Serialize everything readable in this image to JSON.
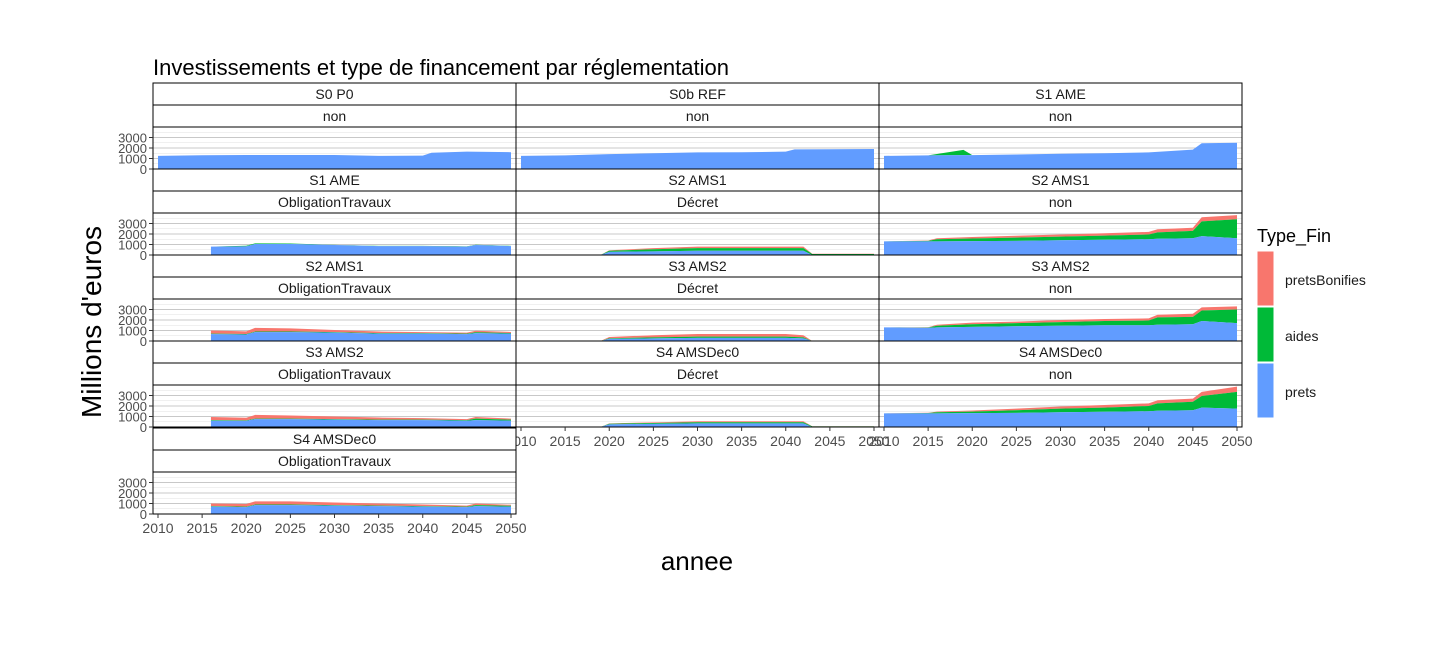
{
  "chart_data": {
    "type": "area",
    "title": "Investissements et type de financement par réglementation",
    "xlabel": "annee",
    "ylabel": "Millions d'euros",
    "x_ticks": [
      2010,
      2015,
      2020,
      2025,
      2030,
      2035,
      2040,
      2045,
      2050
    ],
    "y_ticks": [
      0,
      1000,
      2000,
      3000
    ],
    "xlim": [
      2010,
      2050
    ],
    "ylim": [
      0,
      4000
    ],
    "stacked": true,
    "grid": true,
    "legend": {
      "title": "Type_Fin",
      "position": "right",
      "entries": [
        {
          "name": "pretsBonifies",
          "color": "#F8766D"
        },
        {
          "name": "aides",
          "color": "#00BA38"
        },
        {
          "name": "prets",
          "color": "#619CFF"
        }
      ]
    },
    "panels": [
      {
        "scenario": "S0 P0",
        "regime": "non",
        "x": [
          2010,
          2015,
          2020,
          2025,
          2030,
          2035,
          2040,
          2041,
          2045,
          2050
        ],
        "prets": [
          1250,
          1310,
          1330,
          1330,
          1330,
          1250,
          1270,
          1550,
          1650,
          1600
        ],
        "aides": [
          0,
          0,
          0,
          0,
          0,
          0,
          0,
          0,
          0,
          0
        ],
        "pretsBonifies": [
          0,
          0,
          0,
          0,
          0,
          0,
          0,
          0,
          0,
          0
        ]
      },
      {
        "scenario": "S0b REF",
        "regime": "non",
        "x": [
          2010,
          2015,
          2020,
          2025,
          2030,
          2035,
          2040,
          2041,
          2045,
          2050
        ],
        "prets": [
          1250,
          1300,
          1420,
          1500,
          1580,
          1600,
          1650,
          1870,
          1880,
          1900
        ],
        "aides": [
          0,
          0,
          0,
          0,
          0,
          0,
          0,
          0,
          0,
          0
        ],
        "pretsBonifies": [
          0,
          0,
          0,
          0,
          0,
          0,
          0,
          0,
          0,
          0
        ]
      },
      {
        "scenario": "S1 AME",
        "regime": "non",
        "x": [
          2010,
          2015,
          2017,
          2019,
          2020,
          2025,
          2030,
          2035,
          2040,
          2045,
          2046,
          2050
        ],
        "prets": [
          1250,
          1300,
          1310,
          1320,
          1320,
          1380,
          1450,
          1500,
          1580,
          1850,
          2450,
          2500
        ],
        "aides": [
          0,
          0,
          250,
          500,
          0,
          0,
          0,
          0,
          0,
          0,
          0,
          0
        ],
        "pretsBonifies": [
          0,
          0,
          0,
          0,
          0,
          0,
          0,
          0,
          0,
          0,
          0,
          0
        ]
      },
      {
        "scenario": "S1 AME",
        "regime": "ObligationTravaux",
        "x": [
          2016,
          2020,
          2021,
          2025,
          2030,
          2035,
          2040,
          2045,
          2046,
          2050
        ],
        "prets": [
          800,
          820,
          1050,
          1050,
          950,
          850,
          850,
          800,
          950,
          850
        ],
        "aides": [
          0,
          60,
          60,
          40,
          20,
          20,
          20,
          20,
          30,
          20
        ],
        "pretsBonifies": [
          0,
          0,
          0,
          0,
          0,
          0,
          0,
          0,
          0,
          0
        ]
      },
      {
        "scenario": "S2 AMS1",
        "regime": "Décret",
        "x": [
          2019,
          2020,
          2025,
          2030,
          2035,
          2040,
          2042,
          2043,
          2050
        ],
        "prets": [
          0,
          300,
          350,
          400,
          400,
          400,
          400,
          0,
          0
        ],
        "aides": [
          0,
          100,
          200,
          250,
          250,
          250,
          250,
          100,
          100
        ],
        "pretsBonifies": [
          0,
          50,
          100,
          150,
          150,
          150,
          150,
          20,
          20
        ]
      },
      {
        "scenario": "S2 AMS1",
        "regime": "non",
        "x": [
          2010,
          2015,
          2016,
          2020,
          2025,
          2030,
          2035,
          2040,
          2041,
          2045,
          2046,
          2050
        ],
        "prets": [
          1300,
          1300,
          1300,
          1320,
          1350,
          1400,
          1450,
          1500,
          1550,
          1600,
          1800,
          1600
        ],
        "aides": [
          0,
          50,
          200,
          250,
          300,
          350,
          400,
          450,
          600,
          700,
          1400,
          1800
        ],
        "pretsBonifies": [
          0,
          30,
          100,
          150,
          180,
          200,
          220,
          250,
          300,
          300,
          400,
          400
        ]
      },
      {
        "scenario": "S2 AMS1",
        "regime": "ObligationTravaux",
        "x": [
          2016,
          2020,
          2021,
          2025,
          2030,
          2035,
          2040,
          2045,
          2046,
          2050
        ],
        "prets": [
          650,
          620,
          850,
          850,
          800,
          700,
          700,
          650,
          750,
          700
        ],
        "aides": [
          50,
          50,
          50,
          50,
          50,
          50,
          50,
          50,
          80,
          60
        ],
        "pretsBonifies": [
          300,
          250,
          350,
          300,
          200,
          150,
          100,
          100,
          150,
          100
        ]
      },
      {
        "scenario": "S3 AMS2",
        "regime": "Décret",
        "x": [
          2019,
          2020,
          2025,
          2030,
          2035,
          2040,
          2042,
          2043,
          2050
        ],
        "prets": [
          0,
          200,
          250,
          300,
          300,
          300,
          250,
          0,
          0
        ],
        "aides": [
          0,
          60,
          100,
          120,
          120,
          120,
          100,
          0,
          0
        ],
        "pretsBonifies": [
          0,
          120,
          200,
          250,
          250,
          250,
          200,
          0,
          0
        ]
      },
      {
        "scenario": "S3 AMS2",
        "regime": "non",
        "x": [
          2010,
          2015,
          2016,
          2020,
          2025,
          2030,
          2035,
          2040,
          2041,
          2045,
          2046,
          2050
        ],
        "prets": [
          1300,
          1250,
          1300,
          1350,
          1400,
          1450,
          1500,
          1500,
          1550,
          1600,
          1900,
          1700
        ],
        "aides": [
          0,
          30,
          150,
          250,
          300,
          350,
          400,
          450,
          700,
          700,
          1000,
          1300
        ],
        "pretsBonifies": [
          0,
          30,
          100,
          150,
          150,
          200,
          200,
          200,
          250,
          300,
          300,
          300
        ]
      },
      {
        "scenario": "S3 AMS2",
        "regime": "ObligationTravaux",
        "x": [
          2016,
          2020,
          2021,
          2025,
          2030,
          2035,
          2040,
          2045,
          2046,
          2050
        ],
        "prets": [
          600,
          580,
          750,
          750,
          700,
          650,
          650,
          600,
          650,
          600
        ],
        "aides": [
          50,
          50,
          50,
          50,
          50,
          50,
          50,
          50,
          150,
          100
        ],
        "pretsBonifies": [
          300,
          250,
          350,
          300,
          250,
          200,
          150,
          100,
          150,
          100
        ]
      },
      {
        "scenario": "S4 AMSDec0",
        "regime": "Décret",
        "x": [
          2019,
          2020,
          2025,
          2030,
          2035,
          2040,
          2042,
          2043,
          2050
        ],
        "prets": [
          0,
          250,
          300,
          350,
          350,
          350,
          350,
          0,
          0
        ],
        "aides": [
          0,
          60,
          80,
          100,
          100,
          100,
          100,
          60,
          60
        ],
        "pretsBonifies": [
          0,
          40,
          60,
          100,
          100,
          100,
          100,
          10,
          10
        ]
      },
      {
        "scenario": "S4 AMSDec0",
        "regime": "non",
        "x": [
          2010,
          2015,
          2016,
          2020,
          2025,
          2030,
          2035,
          2040,
          2041,
          2045,
          2046,
          2050
        ],
        "prets": [
          1300,
          1300,
          1300,
          1320,
          1350,
          1400,
          1450,
          1500,
          1550,
          1600,
          1850,
          1750
        ],
        "aides": [
          0,
          30,
          100,
          150,
          250,
          350,
          400,
          500,
          700,
          800,
          1100,
          1600
        ],
        "pretsBonifies": [
          0,
          30,
          60,
          100,
          150,
          200,
          250,
          250,
          300,
          300,
          400,
          500
        ]
      },
      {
        "scenario": "S4 AMSDec0",
        "regime": "ObligationTravaux",
        "x": [
          2016,
          2020,
          2021,
          2025,
          2030,
          2035,
          2040,
          2045,
          2046,
          2050
        ],
        "prets": [
          700,
          650,
          850,
          850,
          800,
          750,
          700,
          650,
          750,
          700
        ],
        "aides": [
          50,
          50,
          50,
          50,
          50,
          50,
          50,
          50,
          100,
          80
        ],
        "pretsBonifies": [
          250,
          250,
          300,
          300,
          250,
          200,
          150,
          100,
          150,
          100
        ]
      }
    ]
  }
}
